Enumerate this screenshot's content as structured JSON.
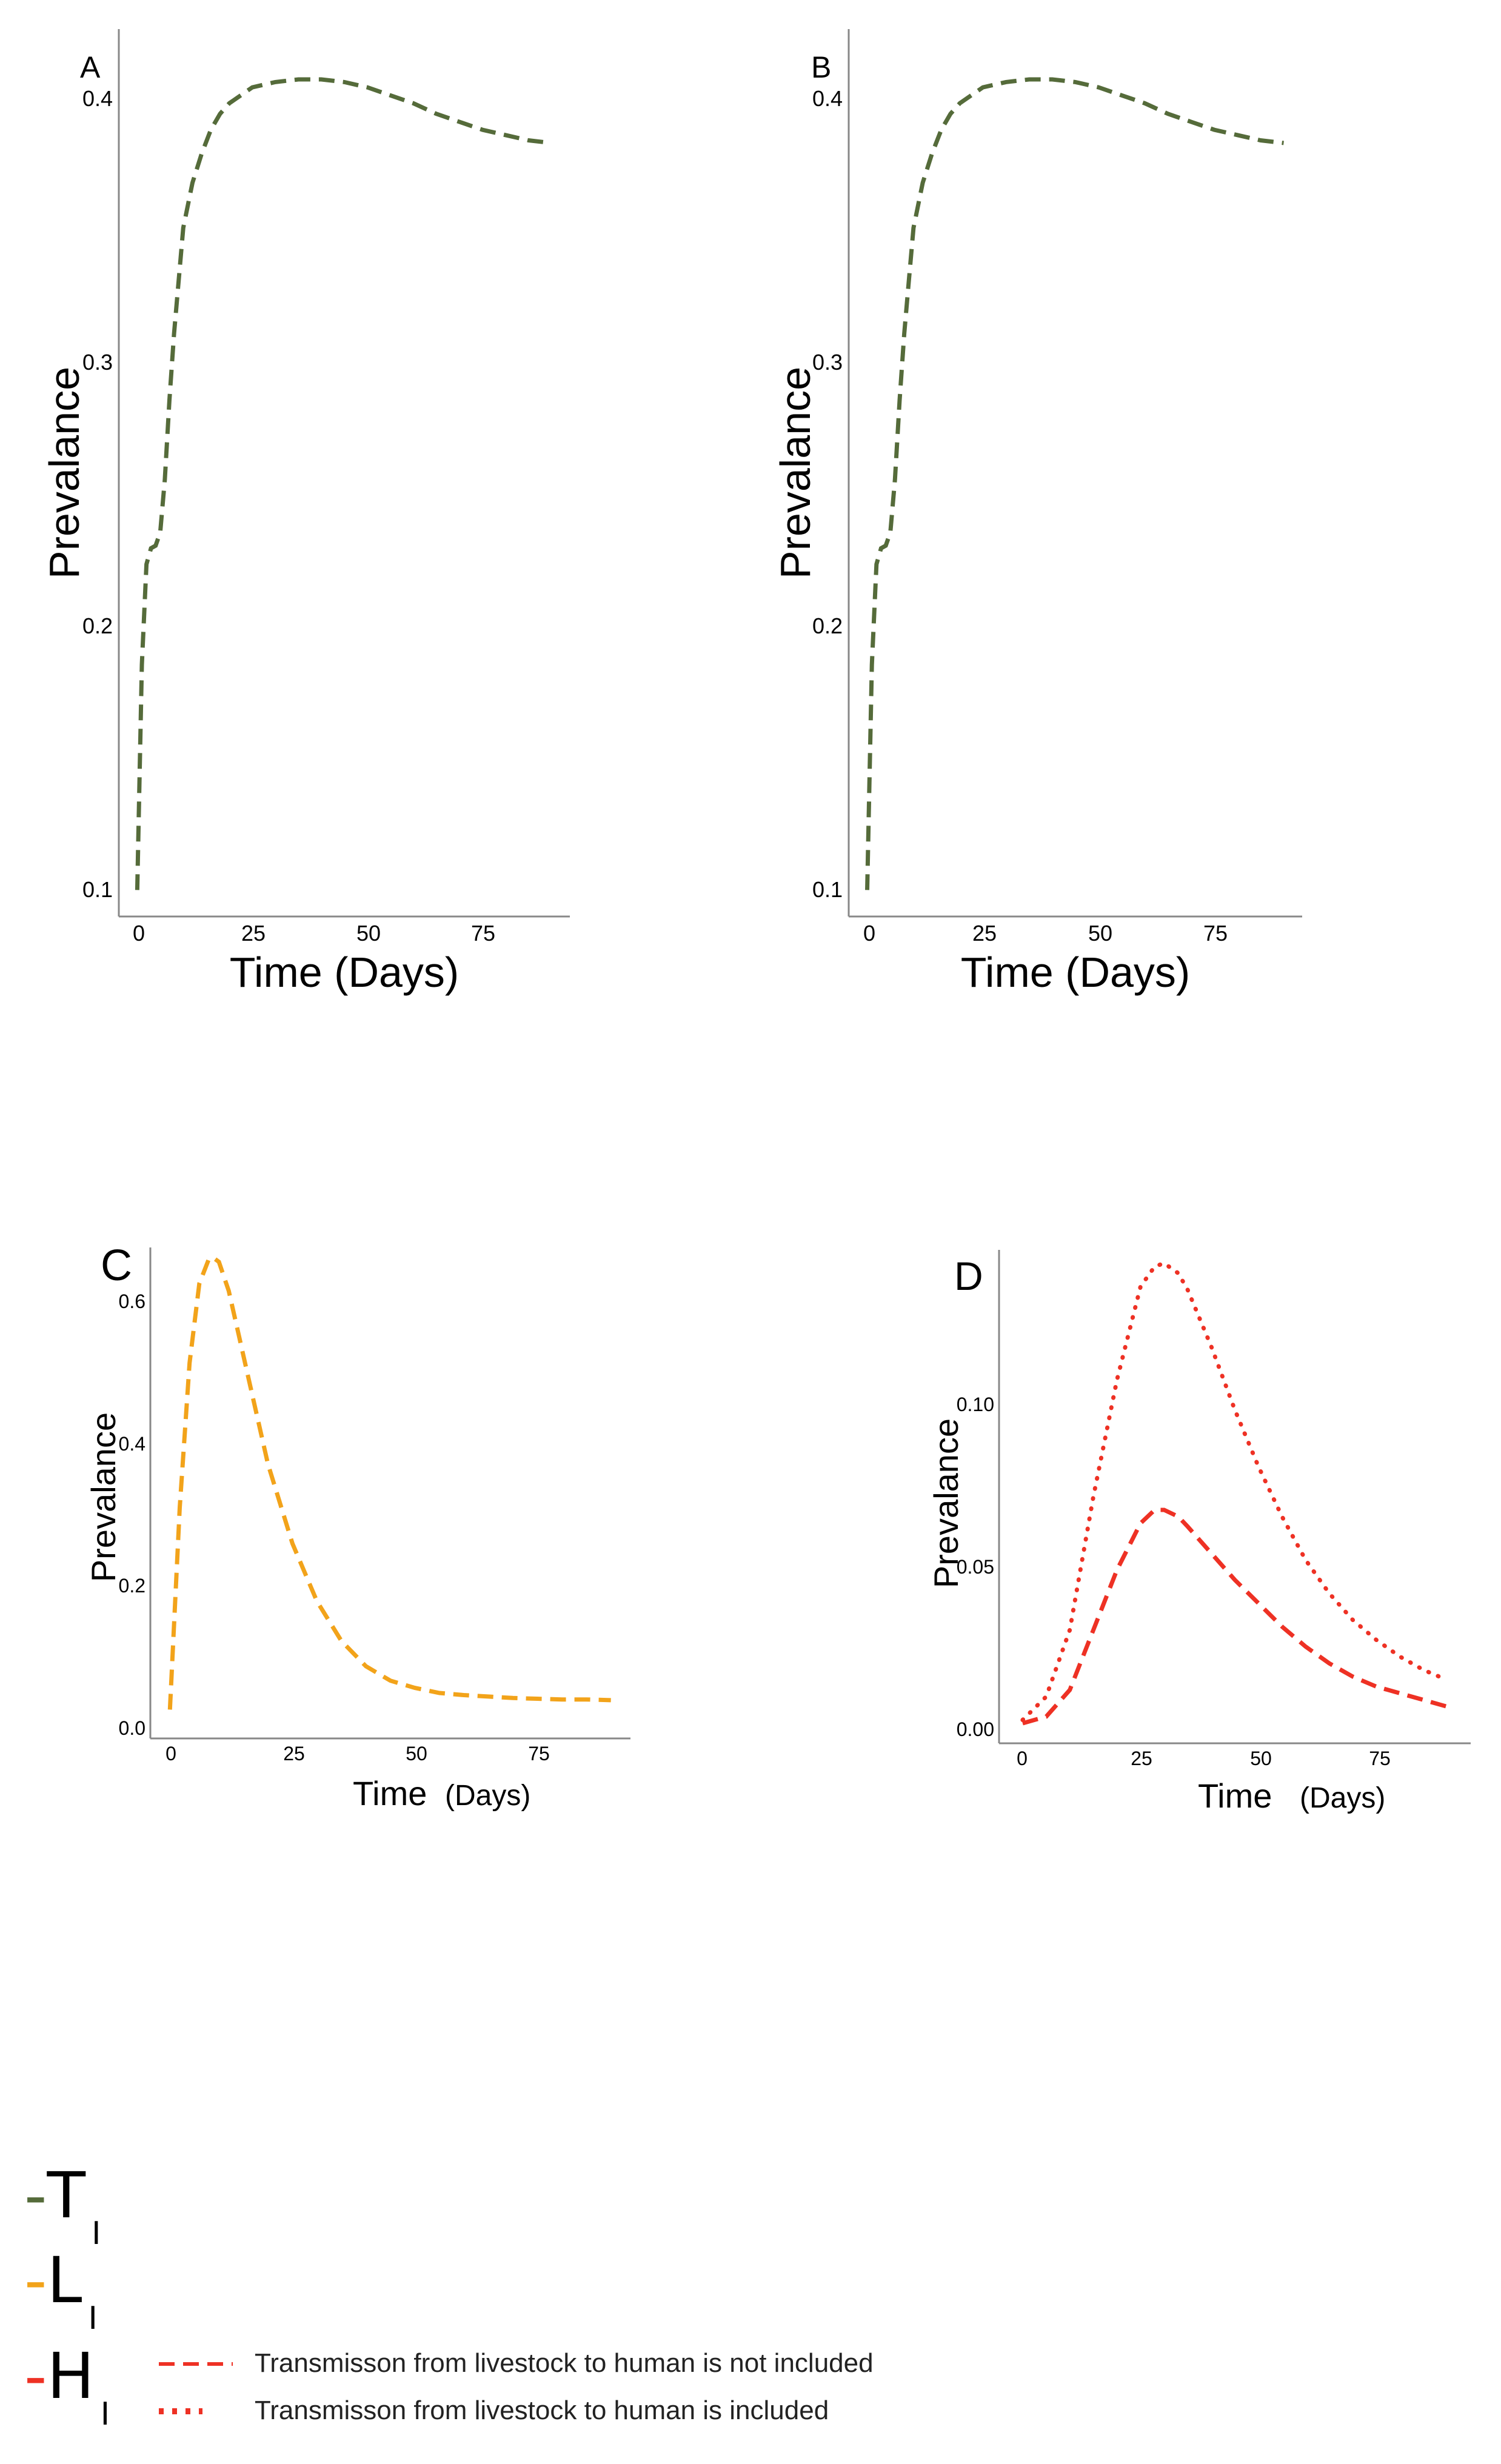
{
  "colors": {
    "t_color": "#556B3A",
    "l_color": "#F2A31A",
    "h_color": "#EE3124",
    "axis_color": "#888888"
  },
  "chart_data": [
    {
      "panel": "A",
      "type": "line",
      "xlabel": "Time (Days)",
      "ylabel": "Prevalance",
      "xticks": [
        0,
        25,
        50,
        75
      ],
      "xtick_labels": [
        "0",
        "25",
        "50",
        "75"
      ],
      "yticks": [
        0.1,
        0.2,
        0.3,
        0.4
      ],
      "ytick_labels": [
        "0.1",
        "0.2",
        "0.3",
        "0.4"
      ],
      "xlim": [
        -4,
        94
      ],
      "ylim": [
        0.095,
        0.43
      ],
      "series": [
        {
          "name": "T_I",
          "color": "#556B3A",
          "style": "dashed",
          "x": [
            0,
            1,
            2,
            3,
            4,
            5,
            6,
            7,
            8,
            9,
            10,
            12,
            14,
            16,
            18,
            20,
            25,
            30,
            35,
            40,
            45,
            50,
            55,
            60,
            65,
            70,
            75,
            80,
            85,
            90
          ],
          "y": [
            0.105,
            0.19,
            0.228,
            0.234,
            0.235,
            0.24,
            0.26,
            0.29,
            0.315,
            0.335,
            0.355,
            0.372,
            0.383,
            0.392,
            0.398,
            0.402,
            0.408,
            0.41,
            0.411,
            0.411,
            0.41,
            0.408,
            0.405,
            0.402,
            0.398,
            0.395,
            0.392,
            0.39,
            0.388,
            0.387
          ]
        }
      ]
    },
    {
      "panel": "B",
      "type": "line",
      "xlabel": "Time (Days)",
      "ylabel": "Prevalance",
      "xticks": [
        0,
        25,
        50,
        75
      ],
      "xtick_labels": [
        "0",
        "25",
        "50",
        "75"
      ],
      "yticks": [
        0.1,
        0.2,
        0.3,
        0.4
      ],
      "ytick_labels": [
        "0.1",
        "0.2",
        "0.3",
        "0.4"
      ],
      "xlim": [
        -4,
        94
      ],
      "ylim": [
        0.095,
        0.43
      ],
      "series": [
        {
          "name": "T_I",
          "color": "#556B3A",
          "style": "dashed",
          "x": [
            0,
            1,
            2,
            3,
            4,
            5,
            6,
            7,
            8,
            9,
            10,
            12,
            14,
            16,
            18,
            20,
            25,
            30,
            35,
            40,
            45,
            50,
            55,
            60,
            65,
            70,
            75,
            80,
            85,
            90
          ],
          "y": [
            0.105,
            0.19,
            0.228,
            0.234,
            0.235,
            0.24,
            0.26,
            0.29,
            0.315,
            0.335,
            0.355,
            0.372,
            0.383,
            0.392,
            0.398,
            0.402,
            0.408,
            0.41,
            0.411,
            0.411,
            0.41,
            0.408,
            0.405,
            0.402,
            0.398,
            0.395,
            0.392,
            0.39,
            0.388,
            0.387
          ]
        }
      ]
    },
    {
      "panel": "C",
      "type": "line",
      "xlabel": "Time",
      "xlabel_unit": "(Days)",
      "ylabel": "Prevalance",
      "xticks": [
        0,
        25,
        50,
        75
      ],
      "xtick_labels": [
        "0",
        "25",
        "50",
        "75"
      ],
      "yticks": [
        0.0,
        0.2,
        0.4,
        0.6
      ],
      "ytick_labels": [
        "0.0",
        "0.2",
        "0.4",
        "0.6"
      ],
      "xlim": [
        -4,
        94
      ],
      "ylim": [
        -0.02,
        0.66
      ],
      "series": [
        {
          "name": "L_I",
          "color": "#F2A31A",
          "style": "dashed",
          "x": [
            0,
            2,
            4,
            6,
            8,
            9,
            10,
            12,
            14,
            16,
            18,
            20,
            25,
            30,
            35,
            40,
            45,
            50,
            55,
            60,
            65,
            70,
            75,
            80,
            85,
            90
          ],
          "y": [
            0.02,
            0.3,
            0.5,
            0.61,
            0.645,
            0.645,
            0.64,
            0.6,
            0.54,
            0.48,
            0.42,
            0.36,
            0.25,
            0.17,
            0.115,
            0.08,
            0.06,
            0.05,
            0.043,
            0.04,
            0.038,
            0.036,
            0.035,
            0.034,
            0.034,
            0.033
          ]
        }
      ]
    },
    {
      "panel": "D",
      "type": "line",
      "xlabel": "Time",
      "xlabel_unit": "(Days)",
      "ylabel": "Prevalance",
      "xticks": [
        0,
        25,
        50,
        75
      ],
      "xtick_labels": [
        "0",
        "25",
        "50",
        "75"
      ],
      "yticks": [
        0.0,
        0.05,
        0.1
      ],
      "ytick_labels": [
        "0.00",
        "0.05",
        "0.10"
      ],
      "xlim": [
        -5,
        95
      ],
      "ylim": [
        -0.004,
        0.144
      ],
      "series": [
        {
          "name": "Transmisson from livestock to human is not included",
          "color": "#EE3124",
          "style": "dashed",
          "x": [
            0,
            5,
            10,
            15,
            20,
            25,
            28,
            30,
            33,
            35,
            40,
            45,
            50,
            55,
            60,
            65,
            70,
            75,
            80,
            85,
            90
          ],
          "y": [
            0.002,
            0.004,
            0.012,
            0.03,
            0.048,
            0.062,
            0.066,
            0.066,
            0.064,
            0.061,
            0.053,
            0.045,
            0.038,
            0.031,
            0.025,
            0.02,
            0.016,
            0.013,
            0.011,
            0.009,
            0.007
          ]
        },
        {
          "name": "Transmisson from livestock to human is included",
          "color": "#EE3124",
          "style": "dotted",
          "x": [
            0,
            5,
            10,
            15,
            20,
            25,
            28,
            30,
            33,
            35,
            40,
            45,
            50,
            55,
            60,
            65,
            70,
            75,
            80,
            85,
            90
          ],
          "y": [
            0.003,
            0.01,
            0.03,
            0.07,
            0.105,
            0.133,
            0.139,
            0.14,
            0.137,
            0.132,
            0.115,
            0.096,
            0.079,
            0.064,
            0.051,
            0.041,
            0.033,
            0.027,
            0.022,
            0.018,
            0.015
          ]
        }
      ]
    }
  ],
  "panel_labels": [
    "A",
    "B",
    "C",
    "D"
  ],
  "legend": {
    "t_symbol": "T",
    "t_sub": "I",
    "l_symbol": "L",
    "l_sub": "I",
    "h_symbol": "H",
    "h_sub": "I",
    "dash_glyph": "-",
    "dashed_key": "Transmisson from livestock to human is not included",
    "dotted_key": "Transmisson from livestock to human is included"
  }
}
